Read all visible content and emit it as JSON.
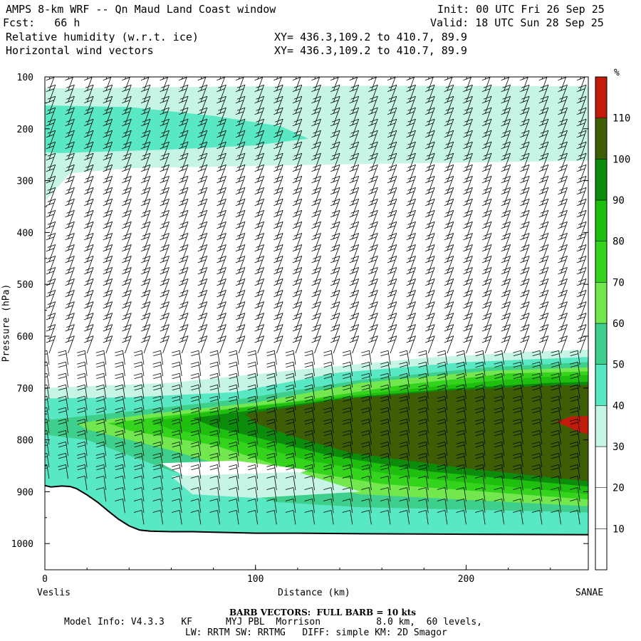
{
  "header": {
    "title_left": "AMPS 8-km WRF -- Qn Maud Land Coast window",
    "init": "Init: 00 UTC Fri 26 Sep 25",
    "fcst": "Fcst:   66 h",
    "valid": "Valid: 18 UTC Sun 28 Sep 25",
    "field1": "Relative humidity (w.r.t. ice)",
    "field2": "Horizontal wind vectors",
    "xy1": "XY= 436.3,109.2 to 410.7, 89.9",
    "xy2": "XY= 436.3,109.2 to 410.7, 89.9"
  },
  "axes": {
    "ylabel": "Pressure (hPa)",
    "xlabel": "Distance (km)",
    "left_end": "Veslis",
    "right_end": "SANAE"
  },
  "footer": {
    "barb_note": "BARB VECTORS:  FULL BARB = 10 kts",
    "model_line1": "Model Info: V4.3.3   KF      MYJ PBL  Morrison          8.0 km,  60 levels,",
    "model_line2": "LW: RRTM SW: RRTMG   DIFF: simple KM: 2D Smagor"
  },
  "chart_data": {
    "type": "heatmap",
    "title": "Relative humidity (w.r.t. ice) and horizontal wind vectors",
    "xlabel": "Distance (km)",
    "ylabel": "Pressure (hPa)",
    "xlim": [
      0,
      258
    ],
    "ylim": [
      1050,
      100
    ],
    "x_ticks": [
      0,
      100,
      200
    ],
    "y_ticks": [
      100,
      200,
      300,
      400,
      500,
      600,
      700,
      800,
      900,
      1000
    ],
    "colorbar": {
      "unit": "%",
      "levels": [
        10,
        20,
        30,
        40,
        50,
        60,
        70,
        80,
        90,
        100,
        110
      ],
      "colors": [
        "#ffffff",
        "#ffffff",
        "#ffffff",
        "#c6f5e6",
        "#59e8c4",
        "#3ecf8c",
        "#72e84e",
        "#33d41b",
        "#1ebf0e",
        "#0b8c0b",
        "#3e5e06",
        "#c21b0b"
      ]
    },
    "terrain_surface": {
      "x_km": [
        0,
        3,
        8,
        12,
        15,
        20,
        25,
        30,
        35,
        40,
        45,
        50,
        60,
        70,
        80,
        90,
        100,
        120,
        150,
        200,
        258
      ],
      "p_hpa": [
        888,
        891,
        889,
        890,
        894,
        906,
        920,
        937,
        953,
        966,
        974,
        976,
        977,
        977,
        978,
        979,
        980,
        980,
        981,
        982,
        983
      ]
    },
    "rh_features": [
      {
        "name": "upper moist layer",
        "x_range_km": [
          0,
          258
        ],
        "p_range_hpa": [
          120,
          275
        ],
        "rh_percent": 35
      },
      {
        "name": "upper tongue",
        "x_range_km": [
          0,
          125
        ],
        "p_range_hpa": [
          160,
          245
        ],
        "rh_percent": 45
      },
      {
        "name": "low-level moist layer",
        "x_range_km": [
          0,
          258
        ],
        "p_range_hpa": [
          630,
          983
        ],
        "rh_percent": "30-100"
      },
      {
        "name": "saturated core",
        "x_range_km": [
          95,
          258
        ],
        "p_range_hpa": [
          695,
          860
        ],
        "rh_percent": 100
      },
      {
        "name": "supersaturated patch",
        "x_range_km": [
          243,
          258
        ],
        "p_range_hpa": [
          755,
          790
        ],
        "rh_percent": 110
      }
    ],
    "wind_barbs": {
      "description": "Columns of wind barbs every ~9 km from 0 to 258 km at levels 100-1000 hPa; full barb = 10 kts",
      "column_x_km": [
        2,
        11,
        20,
        29,
        38,
        47,
        56,
        65,
        74,
        83,
        92,
        101,
        110,
        119,
        128,
        137,
        146,
        155,
        164,
        173,
        182,
        191,
        200,
        209,
        218,
        227,
        236,
        245,
        254
      ]
    }
  }
}
